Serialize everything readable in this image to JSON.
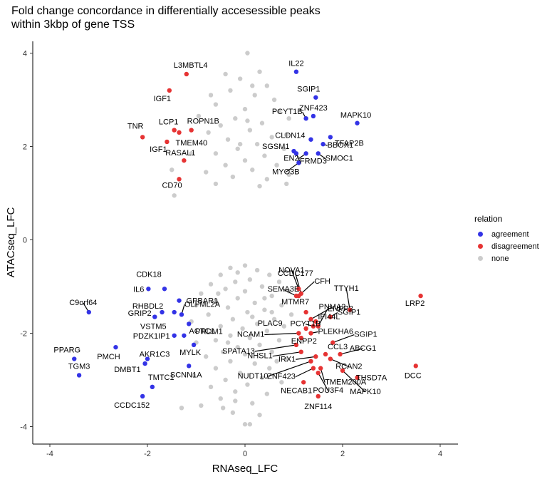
{
  "title_line1": "Fold change concordance in differentially accesessible peaks",
  "title_line2": "within 3kbp of gene TSS",
  "chart_data": {
    "type": "scatter",
    "xlabel": "RNAseq_LFC",
    "ylabel": "ATACseq_LFC",
    "xlim": [
      -4.4,
      4.4
    ],
    "ylim": [
      -4.4,
      4.4
    ],
    "xticks": [
      -4,
      -2,
      0,
      2,
      4
    ],
    "yticks": [
      -4,
      -2,
      0,
      2,
      4
    ],
    "grid": false,
    "legend": {
      "title": "relation",
      "position": "right",
      "entries": [
        {
          "name": "agreement",
          "color": "#3333e6"
        },
        {
          "name": "disagreement",
          "color": "#e63333"
        },
        {
          "name": "none",
          "color": "#cccccc"
        }
      ]
    },
    "series": [
      {
        "name": "agreement",
        "color": "#3333e6",
        "points": [
          {
            "label": "IL22",
            "x": 1.05,
            "y": 3.6
          },
          {
            "label": "SGIP1",
            "x": 1.45,
            "y": 3.05
          },
          {
            "label": "ZNF423",
            "x": 1.4,
            "y": 2.65
          },
          {
            "label": "PCYT1B",
            "x": 1.25,
            "y": 2.6
          },
          {
            "label": "MAPK10",
            "x": 2.3,
            "y": 2.5
          },
          {
            "label": "TFAP2B",
            "x": 1.75,
            "y": 2.2
          },
          {
            "label": "CLDN14",
            "x": 1.35,
            "y": 2.15
          },
          {
            "label": "BBOX1",
            "x": 1.6,
            "y": 2.05
          },
          {
            "label": "SGSM1",
            "x": 1.0,
            "y": 1.9
          },
          {
            "label": "SMOC1",
            "x": 1.5,
            "y": 1.85
          },
          {
            "label": "EN2",
            "x": 1.25,
            "y": 1.85
          },
          {
            "label": "FRMD3",
            "x": 1.05,
            "y": 1.85
          },
          {
            "label": "MYO3B",
            "x": 1.1,
            "y": 1.65
          },
          {
            "label": "CDK18",
            "x": -1.65,
            "y": -1.05
          },
          {
            "label": "IL6",
            "x": -1.98,
            "y": -1.05
          },
          {
            "label": "GPBAR1",
            "x": -1.35,
            "y": -1.3
          },
          {
            "label": "C9orf64",
            "x": -3.2,
            "y": -1.55
          },
          {
            "label": "RHBDL2",
            "x": -1.7,
            "y": -1.55
          },
          {
            "label": "GRIP2",
            "x": -1.45,
            "y": -1.55
          },
          {
            "label": "OLFML2A",
            "x": -1.3,
            "y": -1.6
          },
          {
            "label": "VSTM5",
            "x": -1.85,
            "y": -1.65
          },
          {
            "label": "PRDM1",
            "x": -1.15,
            "y": -1.8
          },
          {
            "label": "ACTC1",
            "x": -1.25,
            "y": -2.05
          },
          {
            "label": "PDZK1IP1",
            "x": -1.45,
            "y": -2.05
          },
          {
            "label": "MYLK",
            "x": -1.05,
            "y": -2.25
          },
          {
            "label": "PPARG",
            "x": -3.5,
            "y": -2.55
          },
          {
            "label": "PMCH",
            "x": -2.65,
            "y": -2.3
          },
          {
            "label": "AKR1C3",
            "x": -2.0,
            "y": -2.55
          },
          {
            "label": "DMBT1",
            "x": -2.05,
            "y": -2.65
          },
          {
            "label": "SCNN1A",
            "x": -1.15,
            "y": -2.7
          },
          {
            "label": "TGM3",
            "x": -3.4,
            "y": -2.9
          },
          {
            "label": "TMTC1",
            "x": -1.9,
            "y": -3.15
          },
          {
            "label": "CCDC152",
            "x": -2.1,
            "y": -3.35
          }
        ]
      },
      {
        "name": "disagreement",
        "color": "#e63333",
        "points": [
          {
            "label": "L3MBTL4",
            "x": -1.2,
            "y": 3.55
          },
          {
            "label": "IGF1",
            "x": -1.55,
            "y": 3.2
          },
          {
            "label": "LCP1",
            "x": -1.45,
            "y": 2.35
          },
          {
            "label": "ROPN1B",
            "x": -1.1,
            "y": 2.35
          },
          {
            "label": "TMEM40",
            "x": -1.35,
            "y": 2.3
          },
          {
            "label": "TNR",
            "x": -2.1,
            "y": 2.2
          },
          {
            "label": "IGF1",
            "x": -1.6,
            "y": 2.1
          },
          {
            "label": "RASAL1",
            "x": -1.25,
            "y": 1.7
          },
          {
            "label": "CD70",
            "x": -1.35,
            "y": 1.3
          },
          {
            "label": "NOVA1",
            "x": 1.1,
            "y": -1.05
          },
          {
            "label": "CCDC177",
            "x": 1.15,
            "y": -1.15
          },
          {
            "label": "CFH",
            "x": 1.1,
            "y": -1.2
          },
          {
            "label": "SEMA3E",
            "x": 1.05,
            "y": -1.2
          },
          {
            "label": "TTYH1",
            "x": 2.15,
            "y": -1.5
          },
          {
            "label": "MTMR7",
            "x": 1.25,
            "y": -1.55
          },
          {
            "label": "LRP2",
            "x": 3.6,
            "y": -1.2
          },
          {
            "label": "PNMA2",
            "x": 1.35,
            "y": -1.7
          },
          {
            "label": "SGIP1",
            "x": 1.75,
            "y": -1.65
          },
          {
            "label": "IFI44L",
            "x": 1.45,
            "y": -1.75
          },
          {
            "label": "PLAC9",
            "x": 1.25,
            "y": -1.9
          },
          {
            "label": "PCYT1B",
            "x": 1.4,
            "y": -1.85
          },
          {
            "label": "ENPP2",
            "x": 1.5,
            "y": -1.85
          },
          {
            "label": "NCAM1",
            "x": 1.1,
            "y": -2.0
          },
          {
            "label": "PLEKHA6",
            "x": 1.35,
            "y": -2.0
          },
          {
            "label": "SGIP1",
            "x": 1.8,
            "y": -2.2
          },
          {
            "label": "ENPP2",
            "x": 1.15,
            "y": -2.1
          },
          {
            "label": "SPATA13",
            "x": 1.05,
            "y": -2.25
          },
          {
            "label": "CCL3",
            "x": 1.65,
            "y": -2.45
          },
          {
            "label": "ABCG1",
            "x": 1.95,
            "y": -2.45
          },
          {
            "label": "NHSL1",
            "x": 1.15,
            "y": -2.4
          },
          {
            "label": "IRX1",
            "x": 1.45,
            "y": -2.5
          },
          {
            "label": "RCAN2",
            "x": 1.75,
            "y": -2.55
          },
          {
            "label": "NUDT10",
            "x": 1.35,
            "y": -2.6
          },
          {
            "label": "DCC",
            "x": 3.5,
            "y": -2.7
          },
          {
            "label": "ZNF423",
            "x": 1.4,
            "y": -2.75
          },
          {
            "label": "TMEM200A",
            "x": 1.55,
            "y": -2.75
          },
          {
            "label": "THSD7A",
            "x": 2.3,
            "y": -2.95
          },
          {
            "label": "POU3F4",
            "x": 1.5,
            "y": -2.85
          },
          {
            "label": "MAPK10",
            "x": 2.0,
            "y": -2.8
          },
          {
            "label": "NECAB1",
            "x": 1.2,
            "y": -3.05
          },
          {
            "label": "ZNF114",
            "x": 1.5,
            "y": -3.35
          }
        ]
      },
      {
        "name": "none",
        "color": "#cccccc",
        "points": [
          {
            "x": 0.05,
            "y": 4.0
          },
          {
            "x": -0.4,
            "y": 3.55
          },
          {
            "x": 0.3,
            "y": 3.6
          },
          {
            "x": -0.1,
            "y": 3.45
          },
          {
            "x": 0.45,
            "y": 3.3
          },
          {
            "x": -0.3,
            "y": 3.2
          },
          {
            "x": 0.2,
            "y": 3.1
          },
          {
            "x": 0.6,
            "y": 3.0
          },
          {
            "x": -0.6,
            "y": 2.9
          },
          {
            "x": 0.0,
            "y": 2.8
          },
          {
            "x": 0.7,
            "y": 2.75
          },
          {
            "x": 0.9,
            "y": 2.6
          },
          {
            "x": -0.2,
            "y": 2.6
          },
          {
            "x": 0.35,
            "y": 2.5
          },
          {
            "x": -0.5,
            "y": 2.45
          },
          {
            "x": 0.1,
            "y": 2.35
          },
          {
            "x": -0.75,
            "y": 2.3
          },
          {
            "x": 0.55,
            "y": 2.2
          },
          {
            "x": -0.35,
            "y": 2.15
          },
          {
            "x": 0.25,
            "y": 2.05
          },
          {
            "x": -0.15,
            "y": 1.95
          },
          {
            "x": 0.8,
            "y": 1.95
          },
          {
            "x": -0.6,
            "y": 1.85
          },
          {
            "x": 0.4,
            "y": 1.8
          },
          {
            "x": 0.0,
            "y": 1.7
          },
          {
            "x": -0.4,
            "y": 1.6
          },
          {
            "x": 0.65,
            "y": 1.6
          },
          {
            "x": 0.15,
            "y": 1.5
          },
          {
            "x": -0.8,
            "y": 1.45
          },
          {
            "x": 0.9,
            "y": 1.4
          },
          {
            "x": -0.25,
            "y": 1.35
          },
          {
            "x": 0.45,
            "y": 1.3
          },
          {
            "x": -1.5,
            "y": 1.5
          },
          {
            "x": -1.1,
            "y": 1.85
          },
          {
            "x": -0.95,
            "y": 2.65
          },
          {
            "x": 0.85,
            "y": 2.25
          },
          {
            "x": -1.45,
            "y": 0.95
          },
          {
            "x": 0.85,
            "y": 1.2
          },
          {
            "x": -0.6,
            "y": 1.2
          },
          {
            "x": 0.3,
            "y": 1.15
          },
          {
            "x": -0.1,
            "y": 2.05
          },
          {
            "x": 0.05,
            "y": 2.55
          },
          {
            "x": -0.7,
            "y": 3.1
          },
          {
            "x": 0.15,
            "y": 3.3
          },
          {
            "x": 0.0,
            "y": -0.55
          },
          {
            "x": -0.3,
            "y": -0.6
          },
          {
            "x": 0.25,
            "y": -0.65
          },
          {
            "x": -0.5,
            "y": -0.75
          },
          {
            "x": 0.5,
            "y": -0.75
          },
          {
            "x": 0.1,
            "y": -0.85
          },
          {
            "x": -0.2,
            "y": -0.9
          },
          {
            "x": -0.7,
            "y": -0.95
          },
          {
            "x": 0.7,
            "y": -0.9
          },
          {
            "x": 0.35,
            "y": -1.0
          },
          {
            "x": -0.4,
            "y": -1.05
          },
          {
            "x": 0.0,
            "y": -1.1
          },
          {
            "x": -0.9,
            "y": -1.15
          },
          {
            "x": 0.9,
            "y": -1.1
          },
          {
            "x": 0.55,
            "y": -1.2
          },
          {
            "x": -0.15,
            "y": -1.25
          },
          {
            "x": -0.6,
            "y": -1.3
          },
          {
            "x": 0.2,
            "y": -1.35
          },
          {
            "x": -1.0,
            "y": -1.4
          },
          {
            "x": 0.75,
            "y": -1.4
          },
          {
            "x": -0.35,
            "y": -1.45
          },
          {
            "x": 0.4,
            "y": -1.5
          },
          {
            "x": 0.05,
            "y": -1.55
          },
          {
            "x": -0.75,
            "y": -1.6
          },
          {
            "x": 0.95,
            "y": -1.6
          },
          {
            "x": -0.25,
            "y": -1.7
          },
          {
            "x": 0.6,
            "y": -1.7
          },
          {
            "x": -1.1,
            "y": -1.75
          },
          {
            "x": 0.25,
            "y": -1.8
          },
          {
            "x": -0.5,
            "y": -1.85
          },
          {
            "x": 0.8,
            "y": -1.85
          },
          {
            "x": -0.05,
            "y": -1.9
          },
          {
            "x": -0.85,
            "y": -1.95
          },
          {
            "x": 0.45,
            "y": -1.95
          },
          {
            "x": -0.3,
            "y": -2.05
          },
          {
            "x": 0.1,
            "y": -2.1
          },
          {
            "x": -0.6,
            "y": -2.15
          },
          {
            "x": 0.7,
            "y": -2.15
          },
          {
            "x": -1.0,
            "y": -2.2
          },
          {
            "x": 0.3,
            "y": -2.25
          },
          {
            "x": -0.15,
            "y": -2.3
          },
          {
            "x": -0.45,
            "y": -2.4
          },
          {
            "x": 0.55,
            "y": -2.4
          },
          {
            "x": 0.0,
            "y": -2.45
          },
          {
            "x": -0.8,
            "y": -2.5
          },
          {
            "x": 0.85,
            "y": -2.55
          },
          {
            "x": -0.3,
            "y": -2.6
          },
          {
            "x": 0.2,
            "y": -2.65
          },
          {
            "x": -0.6,
            "y": -2.75
          },
          {
            "x": 0.5,
            "y": -2.75
          },
          {
            "x": -0.1,
            "y": -2.85
          },
          {
            "x": -1.05,
            "y": -2.9
          },
          {
            "x": 0.35,
            "y": -2.95
          },
          {
            "x": -0.4,
            "y": -3.0
          },
          {
            "x": 0.75,
            "y": -3.05
          },
          {
            "x": 0.05,
            "y": -3.1
          },
          {
            "x": -0.7,
            "y": -3.15
          },
          {
            "x": -0.2,
            "y": -3.25
          },
          {
            "x": 0.45,
            "y": -3.3
          },
          {
            "x": -0.5,
            "y": -3.4
          },
          {
            "x": 0.15,
            "y": -3.5
          },
          {
            "x": -0.9,
            "y": -3.55
          },
          {
            "x": -0.25,
            "y": -3.7
          },
          {
            "x": 0.3,
            "y": -3.75
          },
          {
            "x": 0.0,
            "y": -3.95
          },
          {
            "x": 0.1,
            "y": -3.95
          },
          {
            "x": -0.45,
            "y": -3.6
          },
          {
            "x": -1.3,
            "y": -3.6
          },
          {
            "x": -0.15,
            "y": -0.7
          },
          {
            "x": 0.4,
            "y": -1.25
          },
          {
            "x": -0.55,
            "y": -1.15
          },
          {
            "x": 0.15,
            "y": -1.65
          },
          {
            "x": -0.35,
            "y": -2.2
          },
          {
            "x": 0.65,
            "y": -2.6
          },
          {
            "x": -0.2,
            "y": -3.45
          },
          {
            "x": 0.55,
            "y": -1.55
          }
        ]
      }
    ]
  }
}
